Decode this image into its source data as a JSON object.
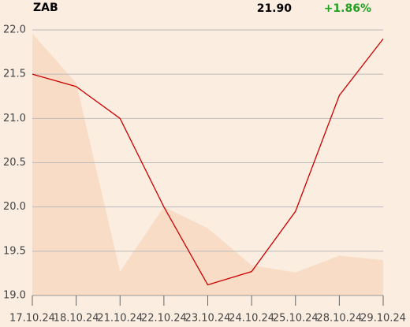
{
  "chart_data": {
    "type": "line",
    "title": "ZAB",
    "price": "21.90",
    "change": "+1.86%",
    "change_color": "#22a022",
    "categories": [
      "17.10.24",
      "18.10.24",
      "21.10.24",
      "22.10.24",
      "23.10.24",
      "24.10.24",
      "25.10.24",
      "28.10.24",
      "29.10.24"
    ],
    "series": [
      {
        "style": "area",
        "color": "#f8dcc6",
        "values": [
          21.96,
          21.4,
          19.27,
          20.0,
          19.76,
          19.34,
          19.26,
          19.45,
          19.4
        ]
      },
      {
        "style": "line",
        "color": "#cc0000",
        "values": [
          21.5,
          21.36,
          21.0,
          20.0,
          19.12,
          19.27,
          19.95,
          21.26,
          21.9
        ]
      }
    ],
    "ylim": [
      19.0,
      22.0
    ],
    "yticks": [
      {
        "value": 19,
        "label": "19.0"
      },
      {
        "value": 19.5,
        "label": "19.5"
      },
      {
        "value": 20,
        "label": "20.0"
      },
      {
        "value": 20.5,
        "label": "20.5"
      },
      {
        "value": 21,
        "label": "21.0"
      },
      {
        "value": 21.5,
        "label": "21.5"
      },
      {
        "value": 22,
        "label": "22.0"
      }
    ],
    "grid": true
  }
}
